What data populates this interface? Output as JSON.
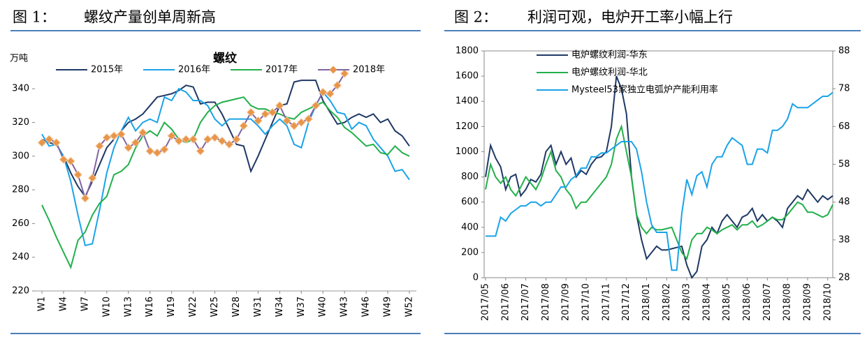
{
  "figures": [
    {
      "label": "图 1：",
      "title": "螺纹产量创单周新高"
    },
    {
      "label": "图 2：",
      "title": "利润可观，电炉开工率小幅上行"
    }
  ],
  "chart_data": [
    {
      "type": "line",
      "title": "螺纹",
      "y_label": "万吨",
      "legend": "top",
      "categories": [
        "W1",
        null,
        null,
        "W4",
        null,
        null,
        "W7",
        null,
        null,
        "W10",
        null,
        null,
        "W13",
        null,
        null,
        "W16",
        null,
        null,
        "W19",
        null,
        null,
        "W22",
        null,
        null,
        "W25",
        null,
        null,
        "W28",
        null,
        null,
        "W31",
        null,
        null,
        "W34",
        null,
        null,
        "W37",
        null,
        null,
        "W40",
        null,
        null,
        "W43",
        null,
        null,
        "W46",
        null,
        null,
        "W49",
        null,
        null,
        "W52"
      ],
      "ylim": [
        220,
        350
      ],
      "yticks": [
        220,
        240,
        260,
        280,
        300,
        320,
        340
      ],
      "series": [
        {
          "name": "2015年",
          "color": "#1f3864",
          "values": [
            310,
            308,
            307,
            300,
            290,
            282,
            276,
            285,
            295,
            305,
            310,
            315,
            320,
            322,
            325,
            330,
            335,
            336,
            337,
            339,
            342,
            341,
            331,
            332,
            332,
            325,
            316,
            307,
            306,
            291,
            300,
            310,
            320,
            330,
            331,
            344,
            345,
            345,
            345,
            333,
            326,
            319,
            320,
            323,
            325,
            323,
            325,
            320,
            322,
            315,
            312,
            306
          ]
        },
        {
          "name": "2016年",
          "color": "#1aa3e8",
          "values": [
            313,
            306,
            307,
            300,
            285,
            265,
            247,
            248,
            268,
            290,
            305,
            315,
            323,
            315,
            320,
            322,
            320,
            335,
            333,
            340,
            338,
            333,
            333,
            330,
            322,
            318,
            322,
            322,
            322,
            322,
            318,
            313,
            318,
            322,
            318,
            307,
            305,
            320,
            330,
            338,
            333,
            326,
            325,
            316,
            320,
            318,
            310,
            305,
            300,
            291,
            292,
            286
          ]
        },
        {
          "name": "2017年",
          "color": "#22b04b",
          "values": [
            271,
            262,
            252,
            243,
            234,
            250,
            255,
            265,
            272,
            276,
            289,
            291,
            295,
            305,
            312,
            315,
            312,
            320,
            316,
            310,
            308,
            310,
            320,
            326,
            330,
            332,
            333,
            334,
            335,
            330,
            328,
            328,
            326,
            325,
            323,
            322,
            326,
            328,
            330,
            332,
            327,
            323,
            317,
            314,
            310,
            306,
            307,
            302,
            301,
            306,
            302,
            300
          ]
        },
        {
          "name": "2018年",
          "color": "#8064a2",
          "marker": "diamond",
          "marker_color": "#e8954a",
          "values": [
            308,
            310,
            308,
            298,
            297,
            289,
            275,
            287,
            306,
            311,
            312,
            313,
            305,
            308,
            314,
            303,
            302,
            304,
            312,
            309,
            310,
            310,
            303,
            310,
            311,
            309,
            307,
            310,
            318,
            326,
            321,
            325,
            326,
            330,
            321,
            318,
            320,
            322,
            330,
            338,
            337,
            342,
            349,
            null,
            null,
            null,
            null,
            null,
            null,
            null,
            null,
            null
          ]
        }
      ]
    },
    {
      "type": "line",
      "legend": "top-left",
      "categories": [
        "2017/05",
        null,
        null,
        null,
        "2017/06",
        null,
        null,
        null,
        "2017/07",
        null,
        null,
        null,
        "2017/08",
        null,
        null,
        null,
        "2017/09",
        null,
        null,
        null,
        "2017/10",
        null,
        null,
        null,
        "2017/11",
        null,
        null,
        null,
        "2017/12",
        null,
        null,
        null,
        "2018/01",
        null,
        null,
        null,
        "2018/02",
        null,
        null,
        null,
        "2018/03",
        null,
        null,
        null,
        "2018/04",
        null,
        null,
        null,
        "2018/05",
        null,
        null,
        null,
        "2018/06",
        null,
        null,
        null,
        "2018/07",
        null,
        null,
        null,
        "2018/08",
        null,
        null,
        null,
        "2018/09",
        null,
        null,
        null,
        "2018/10",
        null
      ],
      "ylim": [
        0,
        1800
      ],
      "yticks": [
        0,
        200,
        400,
        600,
        800,
        1000,
        1200,
        1400,
        1600,
        1800
      ],
      "y2lim": [
        28,
        88
      ],
      "y2ticks": [
        28,
        38,
        48,
        58,
        68,
        78,
        88
      ],
      "series": [
        {
          "name": "电炉螺纹利润-华东",
          "color": "#1f3864",
          "values": [
            800,
            1050,
            950,
            880,
            700,
            800,
            820,
            650,
            700,
            780,
            760,
            820,
            1000,
            1050,
            900,
            1000,
            900,
            950,
            800,
            850,
            820,
            900,
            950,
            960,
            1000,
            1200,
            1600,
            1500,
            1300,
            800,
            500,
            300,
            150,
            200,
            250,
            220,
            220,
            230,
            240,
            250,
            100,
            0,
            50,
            250,
            300,
            400,
            350,
            450,
            500,
            450,
            400,
            480,
            500,
            550,
            450,
            500,
            450,
            480,
            450,
            400,
            550,
            600,
            650,
            620,
            700,
            650,
            600,
            650,
            620,
            650
          ]
        },
        {
          "name": "电炉螺纹利润-华北",
          "color": "#22b04b",
          "values": [
            700,
            900,
            800,
            750,
            800,
            700,
            650,
            720,
            800,
            750,
            700,
            780,
            900,
            1000,
            850,
            800,
            700,
            650,
            550,
            600,
            600,
            650,
            700,
            750,
            800,
            900,
            1100,
            1200,
            1000,
            800,
            500,
            400,
            350,
            400,
            380,
            380,
            390,
            400,
            300,
            200,
            150,
            300,
            350,
            350,
            400,
            380,
            350,
            380,
            400,
            420,
            380,
            420,
            420,
            450,
            400,
            420,
            450,
            480,
            460,
            460,
            500,
            550,
            600,
            580,
            520,
            520,
            500,
            480,
            500,
            580
          ]
        },
        {
          "name": "Mysteel53家独立电弧炉产能利用率",
          "color": "#1aa3e8",
          "axis": "y2",
          "values": [
            39,
            39,
            39,
            44,
            43,
            45,
            46,
            47,
            47,
            48,
            48,
            47,
            48,
            48,
            50,
            52,
            52,
            54,
            55,
            57,
            57,
            60,
            60,
            61,
            61,
            62,
            63,
            64,
            64,
            64,
            62,
            56,
            48,
            42,
            40,
            40,
            40,
            30,
            30,
            45,
            54,
            50,
            55,
            56,
            52,
            58,
            60,
            60,
            63,
            65,
            64,
            63,
            58,
            58,
            62,
            62,
            61,
            67,
            67,
            68,
            70,
            74,
            73,
            73,
            73,
            74,
            75,
            76,
            76,
            77
          ]
        }
      ]
    }
  ]
}
